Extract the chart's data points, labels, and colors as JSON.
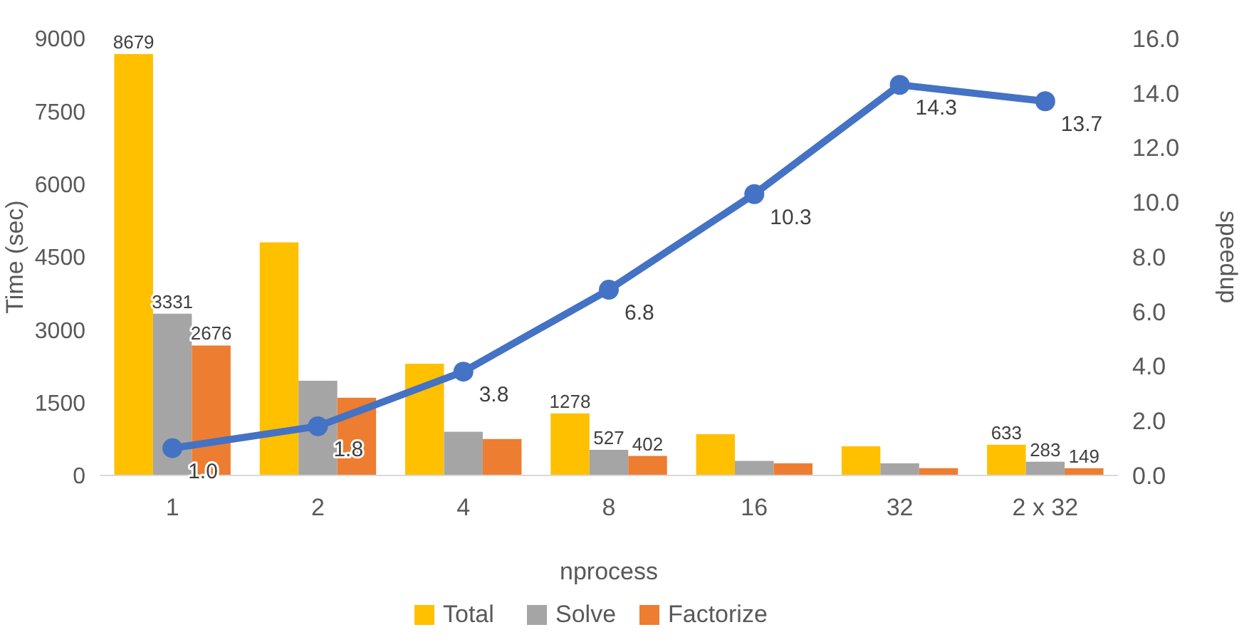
{
  "chart_data": {
    "type": "bar",
    "xlabel": "nprocess",
    "ylabel": "Time (sec)",
    "y2label": "speedup",
    "categories": [
      "1",
      "2",
      "4",
      "8",
      "16",
      "32",
      "2 x 32"
    ],
    "series": [
      {
        "name": "Total",
        "color": "#ffc000",
        "values": [
          8679,
          4800,
          2300,
          1278,
          850,
          600,
          633
        ],
        "value_labels": [
          "8679",
          null,
          null,
          "1278",
          null,
          null,
          "633"
        ]
      },
      {
        "name": "Solve",
        "color": "#a5a5a5",
        "values": [
          3331,
          1950,
          900,
          527,
          300,
          250,
          283
        ],
        "value_labels": [
          "3331",
          null,
          null,
          "527",
          null,
          null,
          "283"
        ]
      },
      {
        "name": "Factorize",
        "color": "#ed7d31",
        "values": [
          2676,
          1600,
          750,
          402,
          250,
          150,
          149
        ],
        "value_labels": [
          "2676",
          null,
          null,
          "402",
          null,
          null,
          "149"
        ]
      },
      {
        "type": "line",
        "axis": "y2",
        "color": "#4472c4",
        "values": [
          1.0,
          1.8,
          3.8,
          6.8,
          10.3,
          14.3,
          13.7
        ],
        "value_labels": [
          "1.0",
          "1.8",
          "3.8",
          "6.8",
          "10.3",
          "14.3",
          "13.7"
        ]
      }
    ],
    "ylim": [
      0,
      9000
    ],
    "yticks": [
      0,
      1500,
      3000,
      4500,
      6000,
      7500,
      9000
    ],
    "y2lim": [
      0,
      16
    ],
    "y2ticks": [
      {
        "value": 0,
        "label": "0.0"
      },
      {
        "value": 2,
        "label": "2.0"
      },
      {
        "value": 4,
        "label": "4.0"
      },
      {
        "value": 6,
        "label": "6.0"
      },
      {
        "value": 8,
        "label": "8.0"
      },
      {
        "value": 10,
        "label": "10.0"
      },
      {
        "value": 12,
        "label": "12.0"
      },
      {
        "value": 14,
        "label": "14.0"
      },
      {
        "value": 16,
        "label": "16.0"
      }
    ],
    "grid": false,
    "legend": "bottom",
    "marker": "circle",
    "line_style": "solid"
  }
}
